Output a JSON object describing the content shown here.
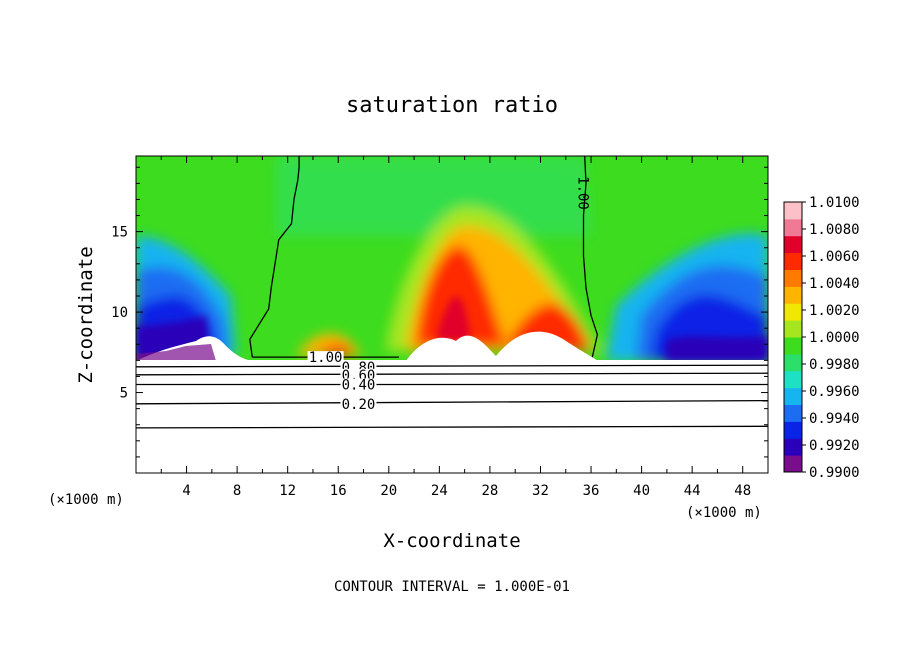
{
  "chart_data": {
    "type": "heatmap",
    "title": "saturation ratio",
    "xlabel": "X-coordinate",
    "ylabel": "Z-coordinate",
    "x_unit": "(×1000 m)",
    "y_unit": "(×1000 m)",
    "xlim": [
      0,
      50
    ],
    "ylim": [
      0,
      19.7
    ],
    "x_ticks": [
      "4",
      "8",
      "12",
      "16",
      "20",
      "24",
      "28",
      "32",
      "36",
      "40",
      "44",
      "48"
    ],
    "y_ticks": [
      "5",
      "10",
      "15"
    ],
    "footer": "CONTOUR INTERVAL = 1.000E-01",
    "colorbar": {
      "labels": [
        "1.0100",
        "1.0080",
        "1.0060",
        "1.0040",
        "1.0020",
        "1.0000",
        "0.9980",
        "0.9960",
        "0.9940",
        "0.9920",
        "0.9900"
      ],
      "min": 0.99,
      "max": 1.01,
      "colors": [
        "#7a0d8c",
        "#2a00b8",
        "#0a24e6",
        "#1c6df2",
        "#18b4f0",
        "#1fe0c4",
        "#2cdf6a",
        "#3ddc1e",
        "#a6e620",
        "#f0e800",
        "#ffb400",
        "#ff7a00",
        "#ff2a00",
        "#e0002a",
        "#f07a96",
        "#fbc0c8"
      ]
    },
    "contours": [
      {
        "label": "1.00",
        "x": [
          9.2,
          9.0,
          10.5,
          10.7,
          11.3,
          12.3,
          12.5,
          12.8,
          12.9,
          12.9
        ],
        "y": [
          7.2,
          8.3,
          10.2,
          11.5,
          14.5,
          15.5,
          17.0,
          18.2,
          19.0,
          19.7
        ]
      },
      {
        "label": "1.00",
        "x": [
          36.1,
          36.5,
          36.0,
          35.6,
          35.4,
          35.4,
          35.6,
          35.5
        ],
        "y": [
          7.2,
          8.6,
          9.8,
          11.5,
          13.5,
          16.0,
          18.0,
          19.7
        ]
      },
      {
        "label": "1.00",
        "x": [
          9.2,
          20.8
        ],
        "y": [
          7.2,
          7.2
        ]
      },
      {
        "label": "0.80",
        "x": [
          0,
          50
        ],
        "y": [
          6.6,
          6.7
        ]
      },
      {
        "label": "0.60",
        "x": [
          0,
          50
        ],
        "y": [
          6.1,
          6.2
        ]
      },
      {
        "label": "0.40",
        "x": [
          0,
          50
        ],
        "y": [
          5.5,
          5.5
        ]
      },
      {
        "label": "0.20",
        "x": [
          0,
          50
        ],
        "y": [
          4.3,
          4.5
        ]
      },
      {
        "label": "",
        "x": [
          0,
          50
        ],
        "y": [
          2.8,
          2.9
        ]
      }
    ]
  }
}
